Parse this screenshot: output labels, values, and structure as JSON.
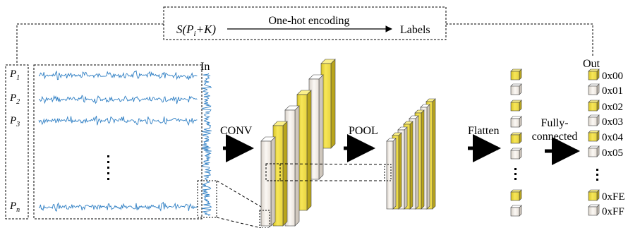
{
  "encoding": {
    "formula_main": "S(P",
    "formula_sub": "i",
    "formula_tail": "+K)",
    "arrow_label": "One-hot encoding",
    "target": "Labels"
  },
  "traces": {
    "label_prefix": "P",
    "rows": [
      {
        "sub": "1"
      },
      {
        "sub": "2"
      },
      {
        "sub": "3"
      },
      {
        "sub": "n"
      }
    ]
  },
  "input": {
    "label": "In"
  },
  "stages": {
    "conv": "CONV",
    "pool": "POOL",
    "flatten": "Flatten",
    "fc_line1": "Fully-",
    "fc_line2": "connected"
  },
  "output": {
    "title": "Out",
    "classes": [
      "0x00",
      "0x01",
      "0x02",
      "0x03",
      "0x04",
      "0x05",
      "0xFE",
      "0xFF"
    ]
  },
  "colors": {
    "yellow": "#f2e04a",
    "white_block": "#f3ede6",
    "trace": "#2f7fc4",
    "line": "#000000"
  }
}
